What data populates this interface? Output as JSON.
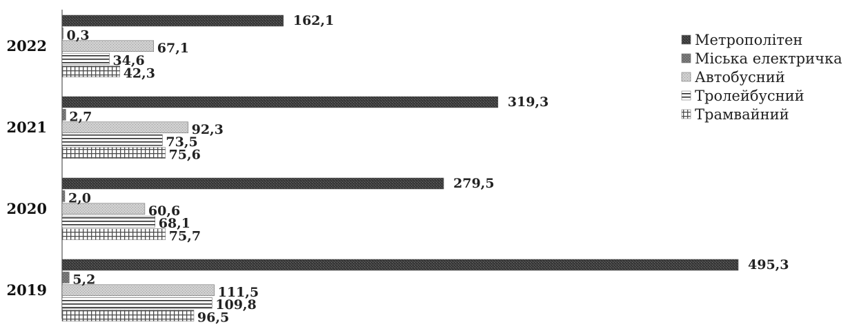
{
  "chart_data": {
    "type": "bar",
    "orientation": "horizontal",
    "categories": [
      "2022",
      "2021",
      "2020",
      "2019"
    ],
    "series": [
      {
        "name": "Метрополітен",
        "values": [
          162.1,
          319.3,
          279.5,
          495.3
        ],
        "labels": [
          "162,1",
          "319,3",
          "279,5",
          "495,3"
        ],
        "color": "#4a4a4a",
        "pattern": "dense-dark"
      },
      {
        "name": "Міська електричка",
        "values": [
          0.3,
          2.7,
          2.0,
          5.2
        ],
        "labels": [
          "0,3",
          "2,7",
          "2,0",
          "5,2"
        ],
        "color": "#7a7a7a",
        "pattern": "dense-medium"
      },
      {
        "name": "Автобусний",
        "values": [
          67.1,
          92.3,
          60.6,
          111.5
        ],
        "labels": [
          "67,1",
          "92,3",
          "60,6",
          "111,5"
        ],
        "color": "#c4c4c4",
        "pattern": "dense-light"
      },
      {
        "name": "Тролейбусний",
        "values": [
          34.6,
          73.5,
          68.1,
          109.8
        ],
        "labels": [
          "34,6",
          "73,5",
          "68,1",
          "109,8"
        ],
        "color": "#333333",
        "pattern": "horizontal-lines"
      },
      {
        "name": "Трамвайний",
        "values": [
          42.3,
          75.6,
          75.7,
          96.5
        ],
        "labels": [
          "42,3",
          "75,6",
          "75,7",
          "96,5"
        ],
        "color": "#555555",
        "pattern": "grid"
      }
    ],
    "xlim": [
      0,
      500
    ],
    "grid": false,
    "legend_position": "right"
  }
}
